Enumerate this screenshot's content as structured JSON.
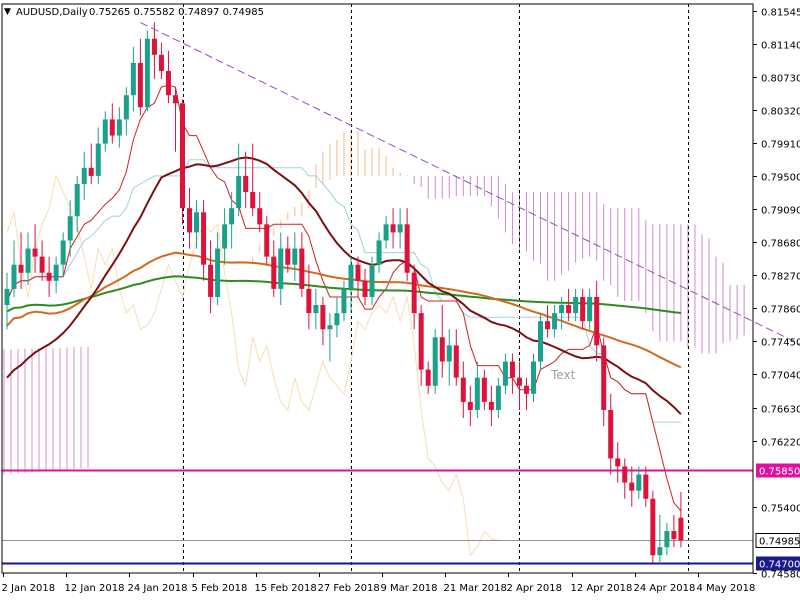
{
  "header": {
    "arrow": "▼",
    "symbol": "AUDUSD,Daily",
    "ohlc": "0.75265 0.75582 0.74897 0.74985"
  },
  "colors": {
    "up": "#1ba08a",
    "down": "#dc143c",
    "sma_dark": "#7a1010",
    "sma_orange": "#d2691e",
    "sma_green": "#2e8b22",
    "tenkan": "#cc2222",
    "kijun_light": "#a0d0e0",
    "span_bull": "#f0a060",
    "span_bear": "#c060c0",
    "chikou": "#f5deb3",
    "trendline": "#9a4ac0",
    "level_magenta": "#e0109e",
    "level_navy": "#1a1a8a",
    "level_gray": "#909090"
  },
  "chart_data": {
    "type": "candlestick",
    "title": "AUDUSD,Daily",
    "ohlc_last": {
      "open": 0.75265,
      "high": 0.75582,
      "low": 0.74897,
      "close": 0.74985
    },
    "x_tick_labels": [
      "2 Jan 2018",
      "12 Jan 2018",
      "24 Jan 2018",
      "5 Feb 2018",
      "15 Feb 2018",
      "27 Feb 2018",
      "9 Mar 2018",
      "21 Mar 2018",
      "2 Apr 2018",
      "12 Apr 2018",
      "24 Apr 2018",
      "4 May 2018"
    ],
    "y_tick_labels": [
      "0.81545",
      "0.81140",
      "0.80730",
      "0.80320",
      "0.79910",
      "0.79500",
      "0.79090",
      "0.78680",
      "0.78270",
      "0.77860",
      "0.77450",
      "0.77040",
      "0.76630",
      "0.76220",
      "0.75850",
      "0.75400",
      "0.74985",
      "0.74700",
      "0.74580"
    ],
    "ylim": [
      0.7458,
      0.8163
    ],
    "grid": false,
    "vertical_separators": [
      "24 Jan 2018",
      "27 Feb 2018",
      "2 Apr 2018",
      "24 Apr 2018"
    ],
    "candles": [
      {
        "o": 0.779,
        "h": 0.783,
        "l": 0.776,
        "c": 0.781
      },
      {
        "o": 0.781,
        "h": 0.787,
        "l": 0.78,
        "c": 0.784
      },
      {
        "o": 0.784,
        "h": 0.788,
        "l": 0.781,
        "c": 0.783
      },
      {
        "o": 0.783,
        "h": 0.788,
        "l": 0.7815,
        "c": 0.786
      },
      {
        "o": 0.786,
        "h": 0.789,
        "l": 0.783,
        "c": 0.785
      },
      {
        "o": 0.785,
        "h": 0.787,
        "l": 0.782,
        "c": 0.783
      },
      {
        "o": 0.783,
        "h": 0.785,
        "l": 0.78,
        "c": 0.782
      },
      {
        "o": 0.782,
        "h": 0.785,
        "l": 0.7805,
        "c": 0.784
      },
      {
        "o": 0.784,
        "h": 0.788,
        "l": 0.7825,
        "c": 0.787
      },
      {
        "o": 0.787,
        "h": 0.792,
        "l": 0.785,
        "c": 0.79
      },
      {
        "o": 0.79,
        "h": 0.795,
        "l": 0.788,
        "c": 0.794
      },
      {
        "o": 0.794,
        "h": 0.798,
        "l": 0.792,
        "c": 0.796
      },
      {
        "o": 0.796,
        "h": 0.799,
        "l": 0.794,
        "c": 0.795
      },
      {
        "o": 0.795,
        "h": 0.801,
        "l": 0.794,
        "c": 0.799
      },
      {
        "o": 0.799,
        "h": 0.803,
        "l": 0.798,
        "c": 0.802
      },
      {
        "o": 0.802,
        "h": 0.804,
        "l": 0.799,
        "c": 0.8
      },
      {
        "o": 0.8,
        "h": 0.8035,
        "l": 0.7985,
        "c": 0.802
      },
      {
        "o": 0.802,
        "h": 0.806,
        "l": 0.8,
        "c": 0.805
      },
      {
        "o": 0.805,
        "h": 0.811,
        "l": 0.803,
        "c": 0.809
      },
      {
        "o": 0.809,
        "h": 0.812,
        "l": 0.8025,
        "c": 0.8035
      },
      {
        "o": 0.8035,
        "h": 0.813,
        "l": 0.803,
        "c": 0.812
      },
      {
        "o": 0.812,
        "h": 0.814,
        "l": 0.807,
        "c": 0.81
      },
      {
        "o": 0.81,
        "h": 0.8115,
        "l": 0.807,
        "c": 0.808
      },
      {
        "o": 0.808,
        "h": 0.8105,
        "l": 0.804,
        "c": 0.805
      },
      {
        "o": 0.805,
        "h": 0.806,
        "l": 0.798,
        "c": 0.804
      },
      {
        "o": 0.804,
        "h": 0.8045,
        "l": 0.789,
        "c": 0.791
      },
      {
        "o": 0.791,
        "h": 0.7935,
        "l": 0.786,
        "c": 0.788
      },
      {
        "o": 0.788,
        "h": 0.792,
        "l": 0.786,
        "c": 0.7905
      },
      {
        "o": 0.7905,
        "h": 0.792,
        "l": 0.782,
        "c": 0.784
      },
      {
        "o": 0.784,
        "h": 0.787,
        "l": 0.778,
        "c": 0.78
      },
      {
        "o": 0.78,
        "h": 0.788,
        "l": 0.779,
        "c": 0.786
      },
      {
        "o": 0.786,
        "h": 0.791,
        "l": 0.784,
        "c": 0.789
      },
      {
        "o": 0.789,
        "h": 0.793,
        "l": 0.786,
        "c": 0.791
      },
      {
        "o": 0.791,
        "h": 0.799,
        "l": 0.79,
        "c": 0.795
      },
      {
        "o": 0.795,
        "h": 0.798,
        "l": 0.791,
        "c": 0.793
      },
      {
        "o": 0.793,
        "h": 0.799,
        "l": 0.79,
        "c": 0.791
      },
      {
        "o": 0.791,
        "h": 0.793,
        "l": 0.788,
        "c": 0.789
      },
      {
        "o": 0.789,
        "h": 0.79,
        "l": 0.784,
        "c": 0.785
      },
      {
        "o": 0.785,
        "h": 0.787,
        "l": 0.78,
        "c": 0.781
      },
      {
        "o": 0.781,
        "h": 0.788,
        "l": 0.779,
        "c": 0.786
      },
      {
        "o": 0.786,
        "h": 0.7875,
        "l": 0.783,
        "c": 0.784
      },
      {
        "o": 0.784,
        "h": 0.788,
        "l": 0.782,
        "c": 0.786
      },
      {
        "o": 0.786,
        "h": 0.788,
        "l": 0.78,
        "c": 0.781
      },
      {
        "o": 0.781,
        "h": 0.784,
        "l": 0.776,
        "c": 0.778
      },
      {
        "o": 0.778,
        "h": 0.781,
        "l": 0.776,
        "c": 0.779
      },
      {
        "o": 0.779,
        "h": 0.78,
        "l": 0.774,
        "c": 0.776
      },
      {
        "o": 0.776,
        "h": 0.778,
        "l": 0.772,
        "c": 0.7765
      },
      {
        "o": 0.7765,
        "h": 0.78,
        "l": 0.775,
        "c": 0.778
      },
      {
        "o": 0.778,
        "h": 0.782,
        "l": 0.777,
        "c": 0.781
      },
      {
        "o": 0.781,
        "h": 0.785,
        "l": 0.778,
        "c": 0.784
      },
      {
        "o": 0.784,
        "h": 0.785,
        "l": 0.78,
        "c": 0.782
      },
      {
        "o": 0.782,
        "h": 0.7835,
        "l": 0.779,
        "c": 0.78
      },
      {
        "o": 0.78,
        "h": 0.785,
        "l": 0.779,
        "c": 0.784
      },
      {
        "o": 0.784,
        "h": 0.788,
        "l": 0.783,
        "c": 0.787
      },
      {
        "o": 0.787,
        "h": 0.79,
        "l": 0.786,
        "c": 0.789
      },
      {
        "o": 0.789,
        "h": 0.791,
        "l": 0.786,
        "c": 0.788
      },
      {
        "o": 0.788,
        "h": 0.791,
        "l": 0.786,
        "c": 0.789
      },
      {
        "o": 0.789,
        "h": 0.791,
        "l": 0.782,
        "c": 0.783
      },
      {
        "o": 0.783,
        "h": 0.784,
        "l": 0.776,
        "c": 0.778
      },
      {
        "o": 0.778,
        "h": 0.779,
        "l": 0.769,
        "c": 0.771
      },
      {
        "o": 0.771,
        "h": 0.772,
        "l": 0.768,
        "c": 0.769
      },
      {
        "o": 0.769,
        "h": 0.776,
        "l": 0.768,
        "c": 0.775
      },
      {
        "o": 0.775,
        "h": 0.779,
        "l": 0.77,
        "c": 0.772
      },
      {
        "o": 0.772,
        "h": 0.776,
        "l": 0.769,
        "c": 0.774
      },
      {
        "o": 0.774,
        "h": 0.776,
        "l": 0.769,
        "c": 0.77
      },
      {
        "o": 0.77,
        "h": 0.772,
        "l": 0.765,
        "c": 0.767
      },
      {
        "o": 0.767,
        "h": 0.769,
        "l": 0.764,
        "c": 0.766
      },
      {
        "o": 0.766,
        "h": 0.772,
        "l": 0.765,
        "c": 0.77
      },
      {
        "o": 0.77,
        "h": 0.771,
        "l": 0.766,
        "c": 0.767
      },
      {
        "o": 0.767,
        "h": 0.769,
        "l": 0.764,
        "c": 0.766
      },
      {
        "o": 0.766,
        "h": 0.77,
        "l": 0.765,
        "c": 0.769
      },
      {
        "o": 0.769,
        "h": 0.773,
        "l": 0.768,
        "c": 0.772
      },
      {
        "o": 0.772,
        "h": 0.773,
        "l": 0.768,
        "c": 0.77
      },
      {
        "o": 0.77,
        "h": 0.772,
        "l": 0.766,
        "c": 0.769
      },
      {
        "o": 0.769,
        "h": 0.77,
        "l": 0.766,
        "c": 0.768
      },
      {
        "o": 0.768,
        "h": 0.773,
        "l": 0.767,
        "c": 0.772
      },
      {
        "o": 0.772,
        "h": 0.778,
        "l": 0.771,
        "c": 0.777
      },
      {
        "o": 0.777,
        "h": 0.779,
        "l": 0.775,
        "c": 0.776
      },
      {
        "o": 0.776,
        "h": 0.779,
        "l": 0.775,
        "c": 0.778
      },
      {
        "o": 0.778,
        "h": 0.78,
        "l": 0.776,
        "c": 0.779
      },
      {
        "o": 0.779,
        "h": 0.781,
        "l": 0.777,
        "c": 0.778
      },
      {
        "o": 0.778,
        "h": 0.781,
        "l": 0.777,
        "c": 0.78
      },
      {
        "o": 0.78,
        "h": 0.781,
        "l": 0.776,
        "c": 0.777
      },
      {
        "o": 0.777,
        "h": 0.781,
        "l": 0.776,
        "c": 0.78
      },
      {
        "o": 0.78,
        "h": 0.782,
        "l": 0.772,
        "c": 0.774
      },
      {
        "o": 0.774,
        "h": 0.775,
        "l": 0.764,
        "c": 0.766
      },
      {
        "o": 0.766,
        "h": 0.768,
        "l": 0.758,
        "c": 0.76
      },
      {
        "o": 0.76,
        "h": 0.762,
        "l": 0.757,
        "c": 0.759
      },
      {
        "o": 0.759,
        "h": 0.76,
        "l": 0.755,
        "c": 0.757
      },
      {
        "o": 0.757,
        "h": 0.759,
        "l": 0.754,
        "c": 0.756
      },
      {
        "o": 0.756,
        "h": 0.759,
        "l": 0.755,
        "c": 0.758
      },
      {
        "o": 0.758,
        "h": 0.759,
        "l": 0.754,
        "c": 0.755
      },
      {
        "o": 0.755,
        "h": 0.756,
        "l": 0.747,
        "c": 0.748
      },
      {
        "o": 0.748,
        "h": 0.753,
        "l": 0.747,
        "c": 0.749
      },
      {
        "o": 0.749,
        "h": 0.752,
        "l": 0.748,
        "c": 0.751
      },
      {
        "o": 0.751,
        "h": 0.753,
        "l": 0.749,
        "c": 0.75
      },
      {
        "o": 0.75265,
        "h": 0.75582,
        "l": 0.74897,
        "c": 0.74985
      }
    ],
    "horizontal_lines": [
      {
        "price": 0.7585,
        "label": "0.75850",
        "color": "#e0109e"
      },
      {
        "price": 0.74985,
        "label": "0.74985",
        "color": "#909090"
      },
      {
        "price": 0.747,
        "label": "0.74700",
        "color": "#1a1a8a"
      }
    ],
    "trendline": {
      "from": {
        "index": 19,
        "price": 0.814
      },
      "to": {
        "index": 118,
        "price": 0.772
      }
    },
    "text_objects": [
      "Text"
    ]
  }
}
